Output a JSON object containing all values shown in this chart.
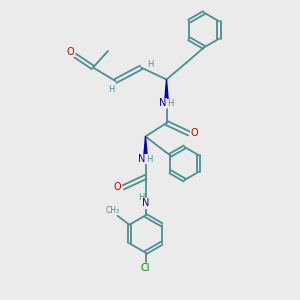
{
  "background_color": "#ebebeb",
  "bond_color": "#4a9090",
  "atom_colors": {
    "N": "#0000cc",
    "O": "#cc0000",
    "Cl": "#008800",
    "H": "#4a9090"
  },
  "figsize": [
    3.0,
    3.0
  ],
  "dpi": 100,
  "xlim": [
    0,
    10
  ],
  "ylim": [
    0,
    10
  ]
}
